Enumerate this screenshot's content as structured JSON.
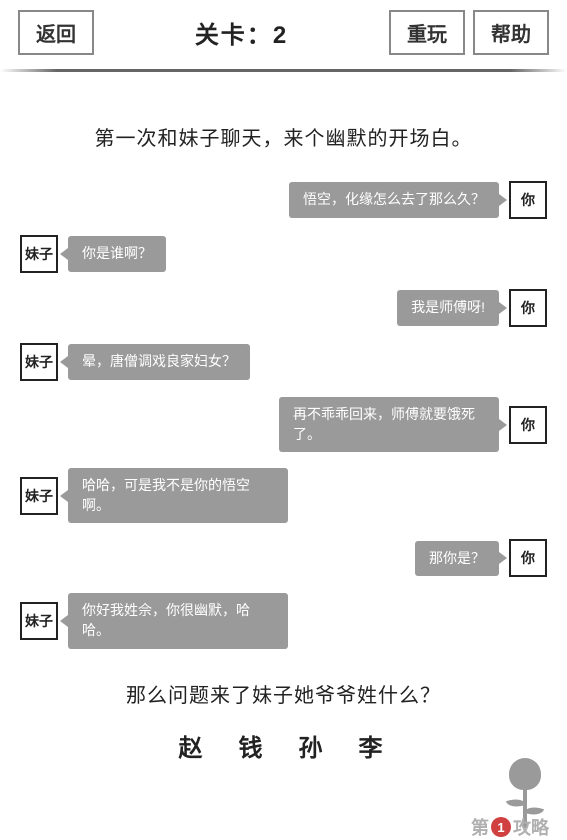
{
  "header": {
    "back_label": "返回",
    "title_prefix": "关卡：",
    "level_number": "2",
    "replay_label": "重玩",
    "help_label": "帮助"
  },
  "intro_text": "第一次和妹子聊天，来个幽默的开场白。",
  "avatars": {
    "you": "你",
    "girl": "妹子"
  },
  "messages": [
    {
      "side": "right",
      "who": "you",
      "text": "悟空，化缘怎么去了那么久？"
    },
    {
      "side": "left",
      "who": "girl",
      "text": "你是谁啊？"
    },
    {
      "side": "right",
      "who": "you",
      "text": "我是师傅呀!"
    },
    {
      "side": "left",
      "who": "girl",
      "text": "晕，唐僧调戏良家妇女？"
    },
    {
      "side": "right",
      "who": "you",
      "text": "再不乖乖回来，师傅就要饿死了。"
    },
    {
      "side": "left",
      "who": "girl",
      "text": "哈哈，可是我不是你的悟空啊。"
    },
    {
      "side": "right",
      "who": "you",
      "text": "那你是？"
    },
    {
      "side": "left",
      "who": "girl",
      "text": "你好我姓佘，你很幽默，哈哈。"
    }
  ],
  "question_text": "那么问题来了妹子她爷爷姓什么？",
  "options": [
    "赵",
    "钱",
    "孙",
    "李"
  ],
  "watermark": {
    "char1": "第",
    "num": "1",
    "char2": "攻略"
  },
  "colors": {
    "bubble_bg": "#9a9a9a",
    "bubble_text": "#ffffff",
    "border": "#222222",
    "text": "#222222",
    "btn_border": "#888888",
    "wm_circle": "#d04040",
    "wm_text": "#b0b0b0"
  }
}
